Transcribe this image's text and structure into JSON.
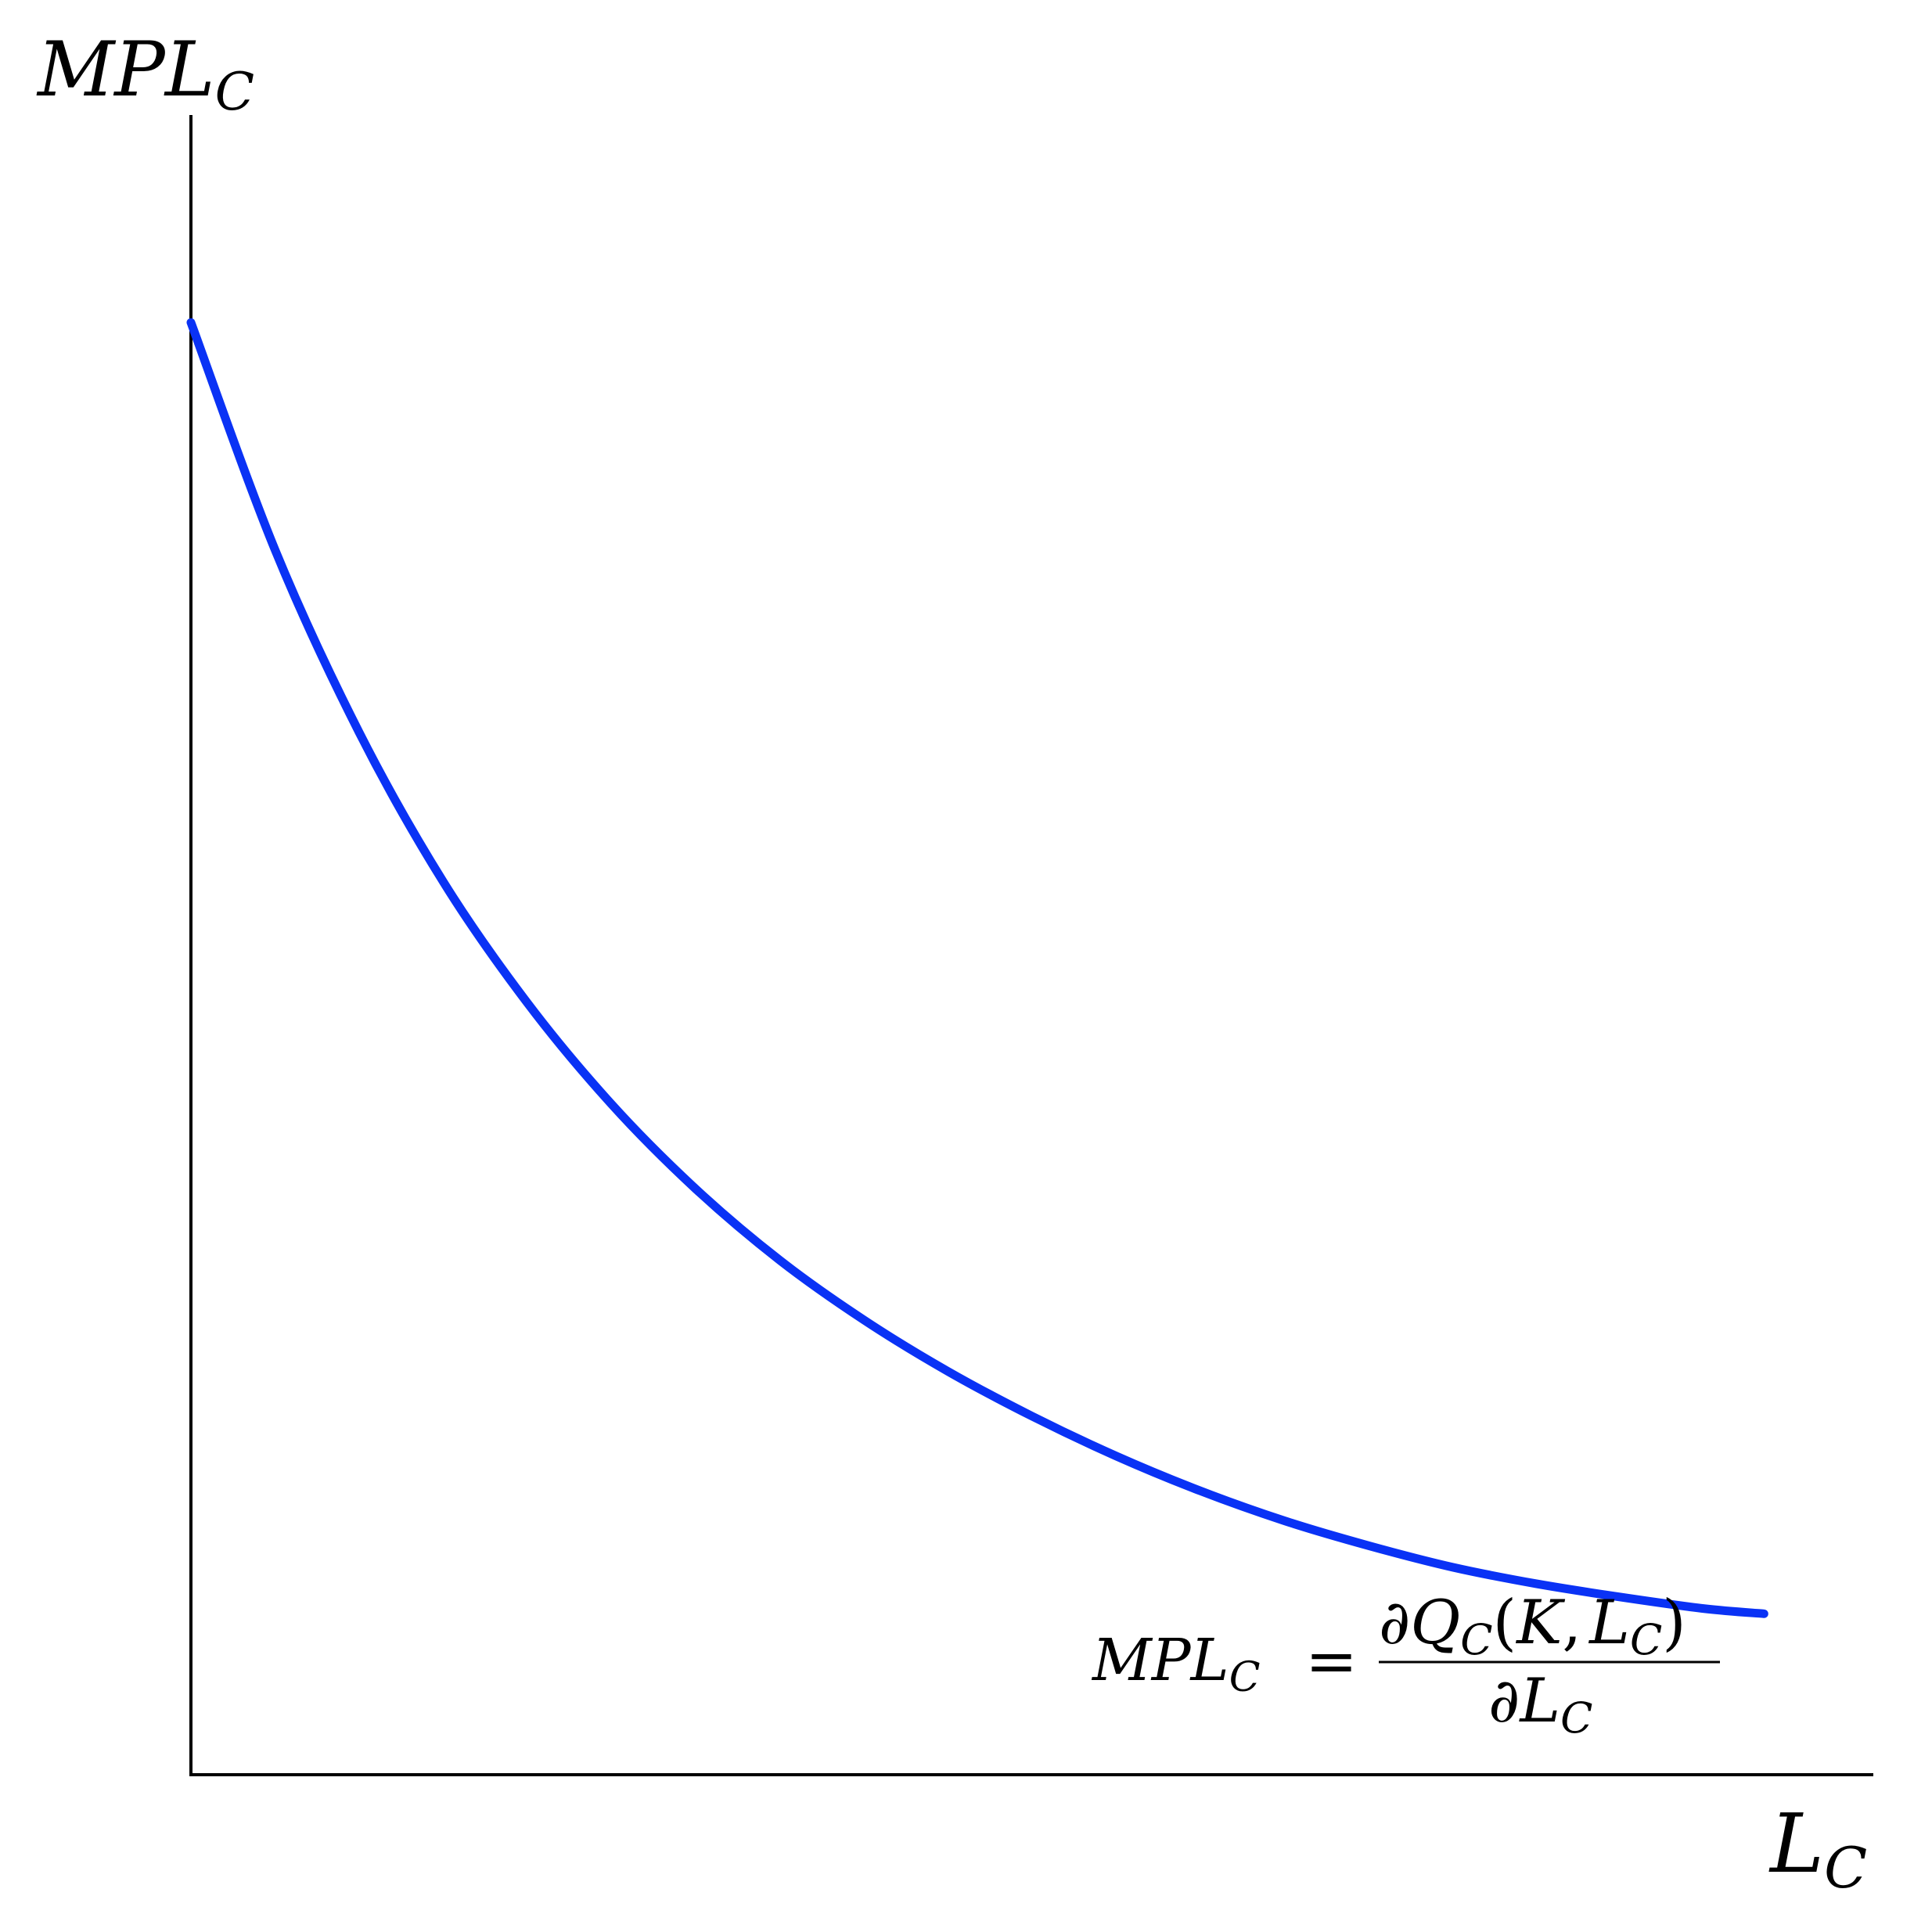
{
  "chart_data": {
    "type": "line",
    "xlabel": {
      "main": "L",
      "sub": "C"
    },
    "ylabel": {
      "main": "MPL",
      "sub": "C"
    },
    "xlim": [
      0,
      10
    ],
    "ylim": [
      0,
      10
    ],
    "grid": false,
    "series": [
      {
        "color": "#0a32f5",
        "x": [
          0,
          0.5,
          1,
          1.5,
          2,
          2.5,
          3,
          3.5,
          4,
          4.5,
          5,
          5.5,
          6,
          6.5,
          7,
          7.5,
          8,
          8.5,
          9,
          9.35
        ],
        "y": [
          8.75,
          7.38,
          6.28,
          5.38,
          4.65,
          4.04,
          3.53,
          3.1,
          2.74,
          2.43,
          2.16,
          1.92,
          1.71,
          1.53,
          1.38,
          1.25,
          1.15,
          1.07,
          1.0,
          0.97
        ]
      }
    ],
    "annotation": {
      "lhs": {
        "main": "MPL",
        "sub": "C"
      },
      "equals": "=",
      "numerator": {
        "partial": "∂",
        "q": "Q",
        "q_sub": "C",
        "open": "(",
        "k": "K",
        "comma": ",",
        "l": "L",
        "l_sub": "C",
        "close": ")"
      },
      "denominator": {
        "partial": "∂",
        "l": "L",
        "l_sub": "C"
      }
    }
  }
}
